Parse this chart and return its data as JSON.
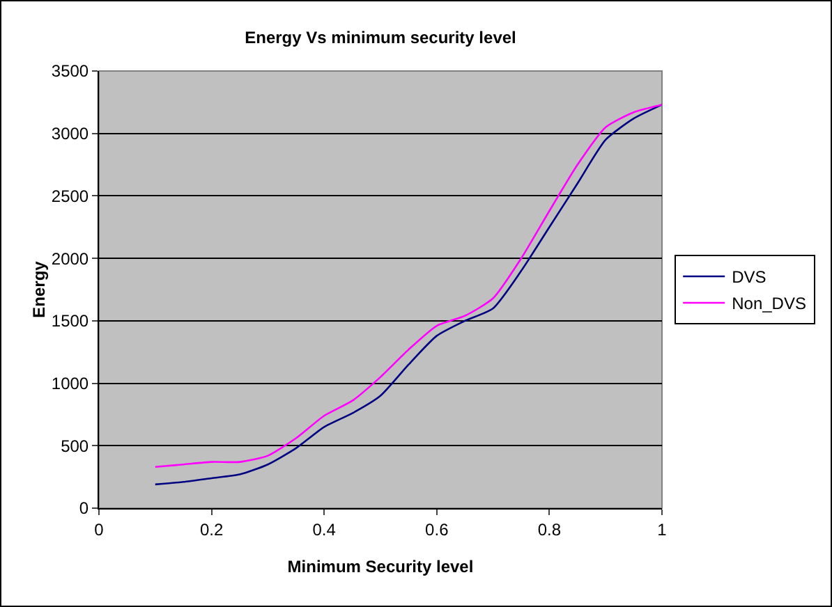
{
  "chart_data": {
    "type": "line",
    "title": "Energy Vs minimum security level",
    "xlabel": "Minimum Security level",
    "ylabel": "Energy",
    "x": [
      0.1,
      0.15,
      0.2,
      0.25,
      0.3,
      0.35,
      0.4,
      0.45,
      0.5,
      0.55,
      0.6,
      0.65,
      0.7,
      0.75,
      0.8,
      0.85,
      0.9,
      0.95,
      1.0
    ],
    "series": [
      {
        "name": "DVS",
        "color": "#000080",
        "values": [
          190,
          210,
          240,
          270,
          350,
          480,
          650,
          760,
          900,
          1150,
          1380,
          1500,
          1600,
          1900,
          2250,
          2600,
          2950,
          3120,
          3230
        ]
      },
      {
        "name": "Non_DVS",
        "color": "#ff00ff",
        "values": [
          330,
          350,
          370,
          370,
          420,
          560,
          740,
          860,
          1050,
          1270,
          1460,
          1540,
          1680,
          2000,
          2380,
          2750,
          3050,
          3170,
          3230
        ]
      }
    ],
    "xlim": [
      0,
      1
    ],
    "xticks": [
      0,
      0.2,
      0.4,
      0.6,
      0.8,
      1
    ],
    "ylim": [
      0,
      3500
    ],
    "yticks": [
      0,
      500,
      1000,
      1500,
      2000,
      2500,
      3000,
      3500
    ],
    "grid": "y",
    "legend": "right",
    "marker": "none",
    "line_style": "solid"
  }
}
